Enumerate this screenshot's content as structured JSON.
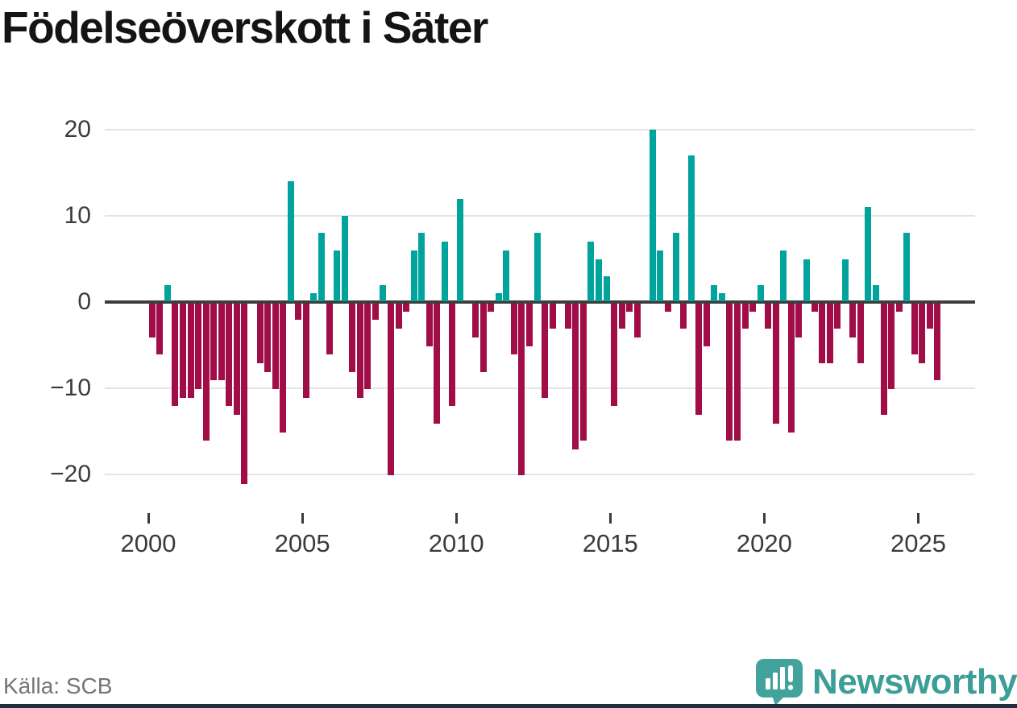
{
  "title": "Födelseöverskott i Säter",
  "source": "Källa: SCB",
  "logo": {
    "wordmark": "Newsworthy",
    "icon": "bar-chart-speech-bubble-icon"
  },
  "colors": {
    "positive_bar": "#00a49c",
    "negative_bar": "#a00d47",
    "zero_line": "#3d3d3d",
    "gridline": "#e4e4e4",
    "axis_text": "#3b3b3b",
    "title_text": "#141414",
    "source_text": "#757575",
    "logo_teal": "#3b9e97",
    "bottom_strip": "#1f2f3d"
  },
  "chart_data": {
    "type": "bar",
    "title": "Födelseöverskott i Säter",
    "frequency": "quarterly",
    "x_start": {
      "year": 2000,
      "quarter": 1
    },
    "x_end": {
      "year": 2025,
      "quarter": 3
    },
    "values": [
      -4,
      -6,
      2,
      -12,
      -11,
      -11,
      -10,
      -16,
      -9,
      -9,
      -12,
      -13,
      -21,
      0,
      -7,
      -8,
      -10,
      -15,
      14,
      -2,
      -11,
      1,
      8,
      -6,
      6,
      10,
      -8,
      -11,
      -10,
      -2,
      2,
      -20,
      -3,
      -1,
      6,
      8,
      -5,
      -14,
      7,
      -12,
      12,
      0,
      -4,
      -8,
      -1,
      1,
      6,
      -6,
      -20,
      -5,
      8,
      -11,
      -3,
      0,
      -3,
      -17,
      -16,
      7,
      5,
      3,
      -12,
      -3,
      -1,
      -4,
      0,
      20,
      6,
      -1,
      8,
      -3,
      17,
      -13,
      -5,
      2,
      1,
      -16,
      -16,
      -3,
      -1,
      2,
      -3,
      -14,
      6,
      -15,
      -4,
      5,
      -1,
      -7,
      -7,
      -3,
      5,
      -4,
      -7,
      11,
      2,
      -13,
      -10,
      -1,
      8,
      -6,
      -7,
      -3,
      -9
    ],
    "x_ticks": [
      2000,
      2005,
      2010,
      2015,
      2020,
      2025
    ],
    "y_ticks": [
      20,
      10,
      0,
      -10,
      -20
    ],
    "ylim": [
      -22,
      21
    ],
    "grid": "horizontal",
    "legend": "none",
    "positive_color": "#00a49c",
    "negative_color": "#a00d47"
  }
}
